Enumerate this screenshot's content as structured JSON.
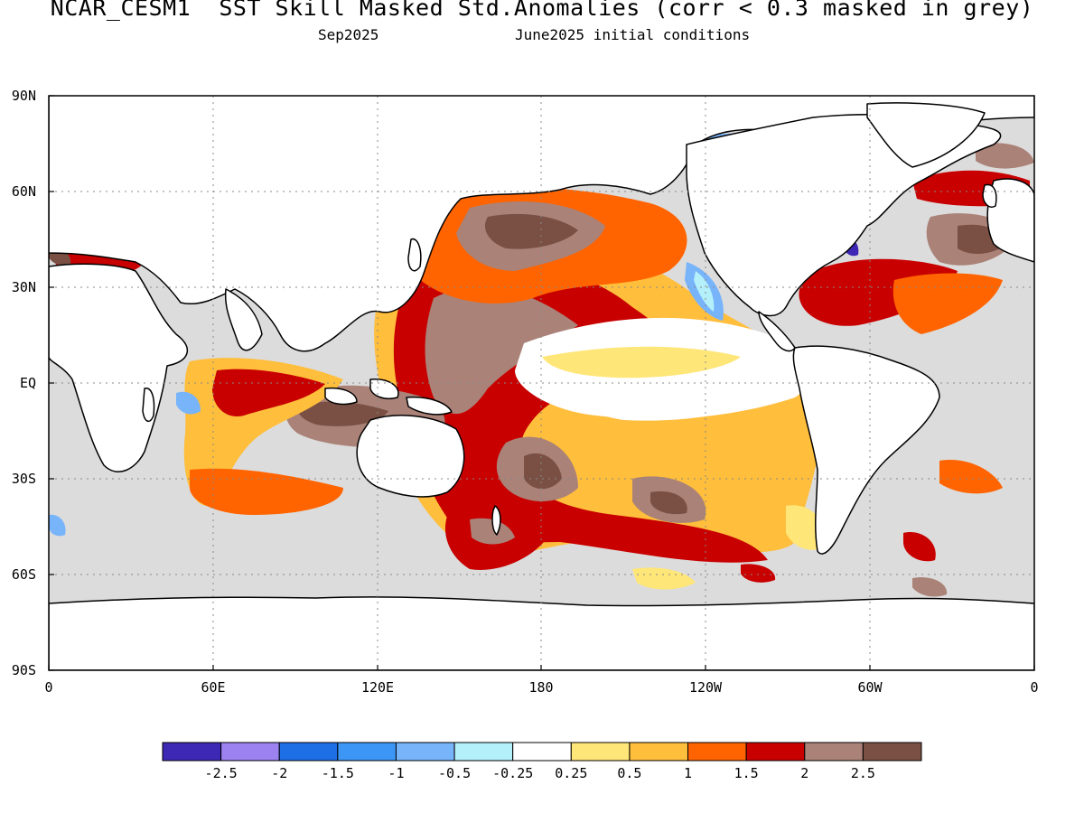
{
  "title": "NCAR_CESM1  SST Skill Masked Std.Anomalies (corr < 0.3 masked in grey)",
  "subtitle_left": "Sep2025",
  "subtitle_right": "June2025 initial conditions",
  "lat_labels": [
    "90N",
    "60N",
    "30N",
    "EQ",
    "30S",
    "60S",
    "90S"
  ],
  "lon_labels": [
    "0",
    "60E",
    "120E",
    "180",
    "120W",
    "60W",
    "0"
  ],
  "colorbar": {
    "colors": [
      "#3c28b4",
      "#9b82f0",
      "#1e6ee6",
      "#3c96f5",
      "#78b4fa",
      "#b4f0fa",
      "#ffffff",
      "#ffe678",
      "#ffbe3c",
      "#ff6400",
      "#c80000",
      "#aa8278",
      "#7a5044"
    ],
    "labels": [
      "-2.5",
      "-2",
      "-1.5",
      "-1",
      "-0.5",
      "-0.25",
      "0.25",
      "0.5",
      "1",
      "1.5",
      "2",
      "2.5"
    ]
  },
  "colors": {
    "mask_grey": "#dcdcdc",
    "land": "#ffffff",
    "coast": "#000000"
  }
}
